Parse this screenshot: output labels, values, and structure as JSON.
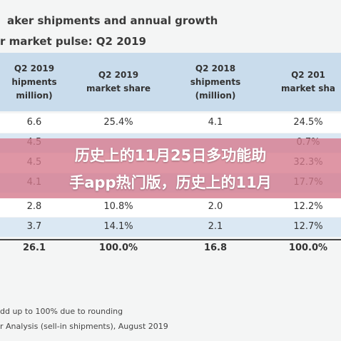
{
  "header": {
    "title": "aker shipments and annual growth",
    "subtitle": "r market pulse: Q2 2019"
  },
  "table": {
    "columns": [
      [
        "Q2 2019",
        "hipments",
        "million)"
      ],
      [
        "Q2 2019",
        "market share"
      ],
      [
        "Q2 2018",
        "shipments",
        "(million)"
      ],
      [
        "Q2 201",
        "market sha"
      ]
    ],
    "rows": [
      {
        "0": "6.6",
        "1": "25.4%",
        "2": "4.1",
        "3": "24.5%"
      },
      {
        "0": "4.5",
        "3": "0.7%"
      },
      {
        "0": "4.5",
        "3": "32.3%"
      },
      {
        "0": "4.1",
        "3": "17.7%"
      },
      {
        "0": "2.8",
        "1": "10.8%",
        "2": "2.0",
        "3": "12.2%"
      },
      {
        "0": "3.7",
        "1": "14.1%",
        "2": "2.1",
        "3": "12.7%"
      },
      {
        "0": "26.1",
        "1": "100.0%",
        "2": "16.8",
        "3": "100.0%"
      }
    ]
  },
  "footnotes": [
    "dd up to 100% due to rounding",
    "r Analysis (sell-in shipments), August 2019"
  ],
  "overlay": {
    "lines": [
      "历史上的11月25日多功能助",
      "手app热门版，历史上的11月"
    ]
  }
}
